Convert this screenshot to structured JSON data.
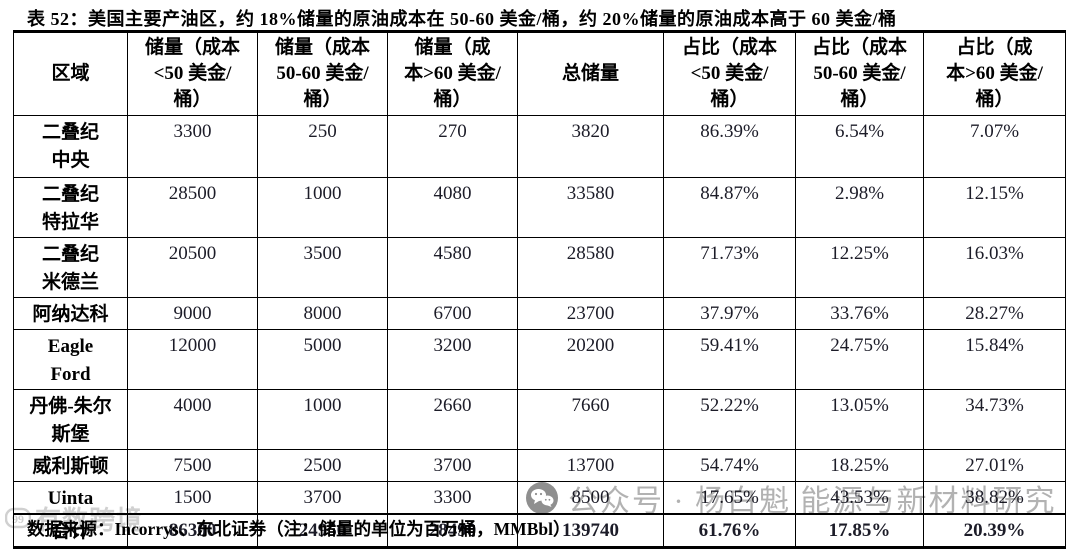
{
  "title": "表 52：美国主要产油区，约 18%储量的原油成本在 50-60 美金/桶，约 20%储量的原油成本高于 60 美金/桶",
  "table": {
    "headers": [
      "区域",
      "储量（成本\n<50 美金/\n桶）",
      "储量（成本\n50-60 美金/\n桶）",
      "储量（成\n本>60 美金/\n桶）",
      "总储量",
      "占比（成本\n<50 美金/\n桶）",
      "占比（成本\n50-60 美金/\n桶）",
      "占比（成\n本>60 美金/\n桶）"
    ],
    "rows": [
      {
        "region": "二叠纪\n中央",
        "values": [
          "3300",
          "250",
          "270",
          "3820",
          "86.39%",
          "6.54%",
          "7.07%"
        ],
        "bold": false,
        "region_bold": false
      },
      {
        "region": "二叠纪\n特拉华",
        "values": [
          "28500",
          "1000",
          "4080",
          "33580",
          "84.87%",
          "2.98%",
          "12.15%"
        ],
        "bold": false,
        "region_bold": false
      },
      {
        "region": "二叠纪\n米德兰",
        "values": [
          "20500",
          "3500",
          "4580",
          "28580",
          "71.73%",
          "12.25%",
          "16.03%"
        ],
        "bold": false,
        "region_bold": false
      },
      {
        "region": "阿纳达科",
        "values": [
          "9000",
          "8000",
          "6700",
          "23700",
          "37.97%",
          "33.76%",
          "28.27%"
        ],
        "bold": false,
        "region_bold": false
      },
      {
        "region": "Eagle\nFord",
        "values": [
          "12000",
          "5000",
          "3200",
          "20200",
          "59.41%",
          "24.75%",
          "15.84%"
        ],
        "bold": false,
        "region_bold": true
      },
      {
        "region": "丹佛-朱尔\n斯堡",
        "values": [
          "4000",
          "1000",
          "2660",
          "7660",
          "52.22%",
          "13.05%",
          "34.73%"
        ],
        "bold": false,
        "region_bold": false
      },
      {
        "region": "威利斯顿",
        "values": [
          "7500",
          "2500",
          "3700",
          "13700",
          "54.74%",
          "18.25%",
          "27.01%"
        ],
        "bold": false,
        "region_bold": false
      },
      {
        "region": "Uinta",
        "values": [
          "1500",
          "3700",
          "3300",
          "8500",
          "17.65%",
          "43.53%",
          "38.82%"
        ],
        "bold": false,
        "region_bold": true
      },
      {
        "region": "合计",
        "values": [
          "86300",
          "24950",
          "28490",
          "139740",
          "61.76%",
          "17.85%",
          "20.39%"
        ],
        "bold": true,
        "region_bold": true
      }
    ]
  },
  "footer": "数据来源：Incorrys、东北证券（注：储量的单位为百万桶，MMBbl）",
  "watermarks": {
    "left": {
      "icon": "quote-badge-icon",
      "text": "有数跨境"
    },
    "right": {
      "icon": "wechat-icon",
      "text": "公众号 · 杨白魁 能源与新材料研究"
    }
  },
  "colors": {
    "border": "#000000",
    "text": "#111111",
    "number_text": "#1c1c28",
    "watermark": "#b2b2b2"
  }
}
